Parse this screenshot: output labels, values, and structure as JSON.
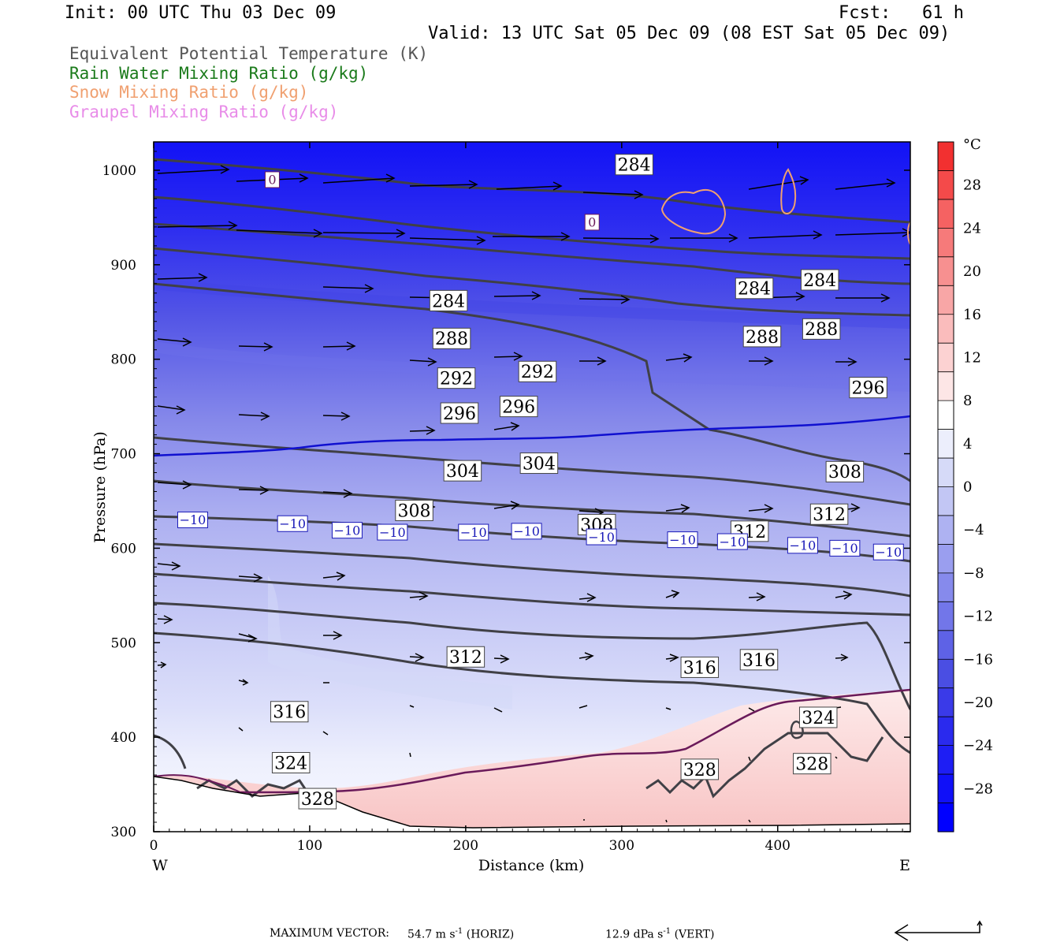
{
  "header": {
    "init": "Init: 00 UTC Thu 03 Dec 09",
    "fcst": "Fcst:   61 h",
    "valid": "Valid: 13 UTC Sat 05 Dec 09 (08 EST Sat 05 Dec 09)"
  },
  "legend": [
    {
      "label": "Equivalent Potential Temperature (K)",
      "color": "#555555"
    },
    {
      "label": "Rain Water Mixing Ratio (g/kg)",
      "color": "#1a7a1a"
    },
    {
      "label": "Snow Mixing Ratio (g/kg)",
      "color": "#f0a070"
    },
    {
      "label": "Graupel Mixing Ratio (g/kg)",
      "color": "#e88ce8"
    }
  ],
  "footer": {
    "max_vector_label": "MAXIMUM VECTOR:",
    "horiz": "54.7 m s",
    "horiz_unit": "-1",
    "horiz_tag": "(HORIZ)",
    "vert": "12.9 dPa s",
    "vert_unit": "-1",
    "vert_tag": "(VERT)"
  },
  "chart_data": {
    "type": "cross-section",
    "xlabel": "Distance (km)",
    "ylabel": "Pressure (hPa)",
    "xlim": [
      0,
      485
    ],
    "ylim": [
      1030,
      300
    ],
    "x_ticks": [
      0,
      100,
      200,
      300,
      400
    ],
    "y_ticks": [
      300,
      400,
      500,
      600,
      700,
      800,
      900,
      1000
    ],
    "x_left_label": "W",
    "x_right_label": "E",
    "colorbar": {
      "unit": "°C",
      "ticks": [
        28,
        24,
        20,
        16,
        12,
        8,
        4,
        0,
        -4,
        -8,
        -12,
        -16,
        -20,
        -24,
        -28
      ],
      "colors_top_to_bottom": [
        "#f23030",
        "#f44a4a",
        "#f56262",
        "#f67a7a",
        "#f79090",
        "#f8a6a6",
        "#fabcbc",
        "#fcd2d2",
        "#fde6e6",
        "#ffffff",
        "#eceefc",
        "#d6daf8",
        "#c2c6f4",
        "#aeb2f2",
        "#9a9eef",
        "#868aec",
        "#7276e9",
        "#5e62e6",
        "#4a4ee3",
        "#3a3ae8",
        "#2a2aee",
        "#1e1ef4",
        "#1010f8",
        "#0000ff"
      ]
    },
    "theta_e_labels": [
      {
        "x": 105,
        "p": 335,
        "v": "328"
      },
      {
        "x": 88,
        "p": 373,
        "v": "324"
      },
      {
        "x": 87,
        "p": 427,
        "v": "316"
      },
      {
        "x": 200,
        "p": 485,
        "v": "312"
      },
      {
        "x": 350,
        "p": 366,
        "v": "328"
      },
      {
        "x": 422,
        "p": 372,
        "v": "328"
      },
      {
        "x": 426,
        "p": 421,
        "v": "324"
      },
      {
        "x": 350,
        "p": 474,
        "v": "316"
      },
      {
        "x": 388,
        "p": 482,
        "v": "316"
      },
      {
        "x": 167,
        "p": 640,
        "v": "308"
      },
      {
        "x": 284,
        "p": 625,
        "v": "308"
      },
      {
        "x": 382,
        "p": 618,
        "v": "312"
      },
      {
        "x": 433,
        "p": 636,
        "v": "312"
      },
      {
        "x": 443,
        "p": 681,
        "v": "308"
      },
      {
        "x": 198,
        "p": 682,
        "v": "304"
      },
      {
        "x": 247,
        "p": 690,
        "v": "304"
      },
      {
        "x": 196,
        "p": 743,
        "v": "296"
      },
      {
        "x": 234,
        "p": 750,
        "v": "296"
      },
      {
        "x": 458,
        "p": 770,
        "v": "296"
      },
      {
        "x": 194,
        "p": 780,
        "v": "292"
      },
      {
        "x": 246,
        "p": 787,
        "v": "292"
      },
      {
        "x": 191,
        "p": 822,
        "v": "288"
      },
      {
        "x": 390,
        "p": 824,
        "v": "288"
      },
      {
        "x": 428,
        "p": 832,
        "v": "288"
      },
      {
        "x": 189,
        "p": 862,
        "v": "284"
      },
      {
        "x": 385,
        "p": 875,
        "v": "284"
      },
      {
        "x": 427,
        "p": 884,
        "v": "284"
      },
      {
        "x": 308,
        "p": 1006,
        "v": "284"
      }
    ],
    "temp_minus10_labels": [
      {
        "x": 25,
        "p": 630,
        "v": "-10"
      },
      {
        "x": 89,
        "p": 626,
        "v": "-10"
      },
      {
        "x": 124,
        "p": 619,
        "v": "-10"
      },
      {
        "x": 153,
        "p": 617,
        "v": "-10"
      },
      {
        "x": 205,
        "p": 617,
        "v": "-10"
      },
      {
        "x": 239,
        "p": 618,
        "v": "-10"
      },
      {
        "x": 287,
        "p": 612,
        "v": "-10"
      },
      {
        "x": 339,
        "p": 609,
        "v": "-10"
      },
      {
        "x": 371,
        "p": 607,
        "v": "-10"
      },
      {
        "x": 416,
        "p": 603,
        "v": "-10"
      },
      {
        "x": 443,
        "p": 600,
        "v": "-10"
      },
      {
        "x": 471,
        "p": 596,
        "v": "-10"
      }
    ],
    "temp_zero_labels": [
      {
        "x": 76,
        "p": 990,
        "v": "0"
      },
      {
        "x": 281,
        "p": 945,
        "v": "0"
      }
    ]
  }
}
